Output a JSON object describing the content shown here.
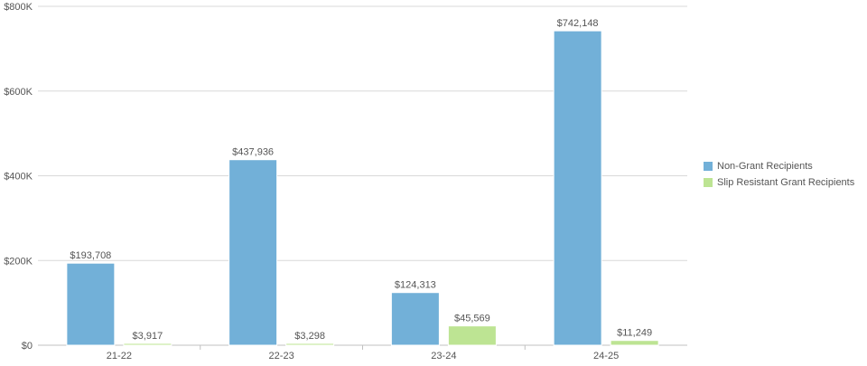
{
  "chart_data": {
    "type": "bar",
    "categories": [
      "21-22",
      "22-23",
      "23-24",
      "24-25"
    ],
    "series": [
      {
        "name": "Non-Grant Recipients",
        "values": [
          193708,
          437936,
          124313,
          742148
        ],
        "color": "#72b0d8",
        "labels": [
          "$193,708",
          "$437,936",
          "$124,313",
          "$742,148"
        ]
      },
      {
        "name": "Slip Resistant Grant Recipients",
        "values": [
          3917,
          3298,
          45569,
          11249
        ],
        "color": "#bde493",
        "labels": [
          "$3,917",
          "$3,298",
          "$45,569",
          "$11,249"
        ]
      }
    ],
    "ylim": [
      0,
      800000
    ],
    "yticks": [
      0,
      200000,
      400000,
      600000,
      800000
    ],
    "ytick_labels": [
      "$0",
      "$200K",
      "$400K",
      "$600K",
      "$800K"
    ],
    "grid": true,
    "legend_position": "right"
  }
}
